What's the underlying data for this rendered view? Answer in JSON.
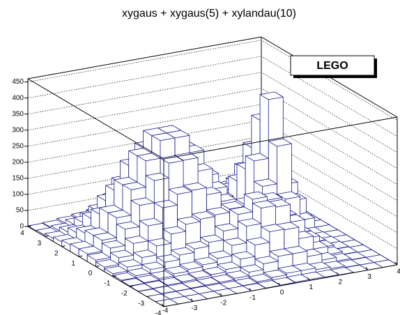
{
  "chart_data": {
    "type": "lego",
    "title": "xygaus + xygaus(5) + xylandau(10)",
    "annotation": "LEGO",
    "color": "#1a1a8c",
    "xlim": [
      -4,
      4
    ],
    "ylim": [
      -4,
      4
    ],
    "zlim": [
      0,
      460
    ],
    "xticks": [
      -4,
      -3,
      -2,
      -1,
      0,
      1,
      2,
      3,
      4
    ],
    "yticks": [
      -4,
      -3,
      -2,
      -1,
      0,
      1,
      2,
      3,
      4
    ],
    "zticks": [
      0,
      50,
      100,
      150,
      200,
      250,
      300,
      350,
      400,
      450
    ],
    "grid": true,
    "z": [
      [
        0,
        0,
        0,
        0,
        0,
        0,
        0,
        1,
        2,
        3,
        3,
        2,
        1,
        0,
        0,
        0
      ],
      [
        0,
        0,
        0,
        0,
        0,
        0,
        1,
        5,
        10,
        15,
        15,
        10,
        5,
        1,
        0,
        0
      ],
      [
        0,
        1,
        1,
        2,
        3,
        4,
        8,
        19,
        37,
        52,
        52,
        35,
        16,
        5,
        1,
        0
      ],
      [
        1,
        2,
        4,
        6,
        9,
        12,
        20,
        44,
        80,
        113,
        111,
        75,
        35,
        10,
        2,
        0
      ],
      [
        2,
        4,
        9,
        15,
        21,
        27,
        39,
        71,
        123,
        171,
        166,
        111,
        52,
        15,
        3,
        0
      ],
      [
        4,
        10,
        21,
        36,
        50,
        61,
        73,
        100,
        144,
        183,
        172,
        113,
        53,
        16,
        3,
        0
      ],
      [
        9,
        21,
        43,
        71,
        100,
        122,
        130,
        135,
        145,
        152,
        130,
        83,
        39,
        11,
        2,
        0
      ],
      [
        14,
        35,
        71,
        118,
        166,
        200,
        204,
        182,
        153,
        122,
        86,
        49,
        22,
        7,
        1,
        0
      ],
      [
        20,
        49,
        100,
        166,
        235,
        281,
        282,
        240,
        176,
        115,
        64,
        30,
        64,
        104,
        30,
        0
      ],
      [
        24,
        58,
        120,
        199,
        281,
        336,
        336,
        282,
        201,
        123,
        61,
        26,
        136,
        253,
        75,
        0
      ],
      [
        24,
        58,
        120,
        199,
        281,
        336,
        336,
        281,
        199,
        120,
        58,
        24,
        200,
        383,
        110,
        0
      ],
      [
        20,
        49,
        100,
        166,
        235,
        281,
        281,
        235,
        166,
        100,
        49,
        20,
        159,
        303,
        90,
        0
      ],
      [
        14,
        35,
        71,
        118,
        166,
        199,
        199,
        166,
        118,
        71,
        35,
        14,
        106,
        202,
        60,
        0
      ],
      [
        9,
        21,
        43,
        71,
        100,
        120,
        120,
        100,
        71,
        43,
        21,
        9,
        64,
        121,
        36,
        0
      ],
      [
        4,
        10,
        21,
        35,
        49,
        58,
        58,
        49,
        35,
        21,
        10,
        4,
        32,
        61,
        18,
        0
      ],
      [
        2,
        4,
        9,
        14,
        20,
        24,
        24,
        20,
        14,
        9,
        4,
        2,
        16,
        30,
        9,
        0
      ]
    ]
  }
}
